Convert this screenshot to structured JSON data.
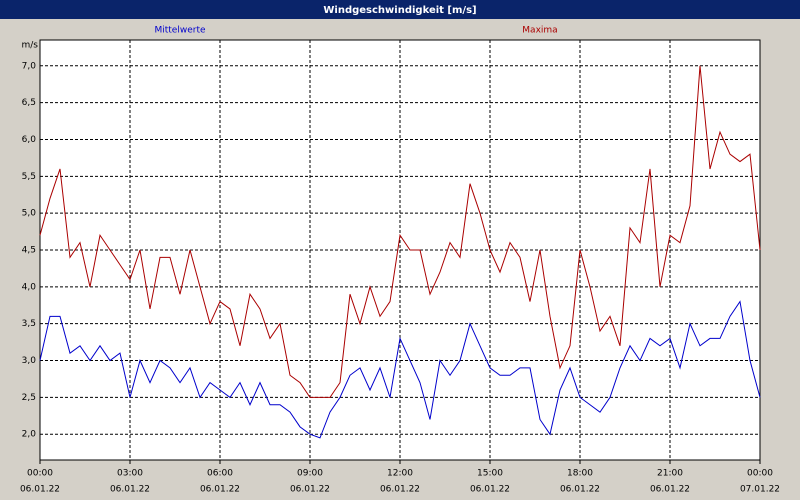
{
  "chart_data": {
    "type": "line",
    "title": "Windgeschwindigkeit [m/s]",
    "y_label": "m/s",
    "x": [
      0,
      20,
      40,
      60,
      80,
      100,
      120,
      140,
      160,
      180,
      200,
      220,
      240,
      260,
      280,
      300,
      320,
      340,
      360,
      380,
      400,
      420,
      440,
      460,
      480,
      500,
      520,
      540,
      560,
      580,
      600,
      620,
      640,
      660,
      680,
      700,
      720,
      740,
      760,
      780,
      800,
      820,
      840,
      860,
      880,
      900,
      920,
      940,
      960,
      980,
      1000,
      1020,
      1040,
      1060,
      1080,
      1100,
      1120,
      1140,
      1160,
      1180,
      1200,
      1220,
      1240,
      1260,
      1280,
      1300,
      1320,
      1340,
      1360,
      1380,
      1400,
      1420,
      1440
    ],
    "series": [
      {
        "name": "Mittelwerte",
        "color": "#0000cc",
        "values": [
          3.0,
          3.6,
          3.6,
          3.1,
          3.2,
          3.0,
          3.2,
          3.0,
          3.1,
          2.5,
          3.0,
          2.7,
          3.0,
          2.9,
          2.7,
          2.9,
          2.5,
          2.7,
          2.6,
          2.5,
          2.7,
          2.4,
          2.7,
          2.4,
          2.4,
          2.3,
          2.1,
          2.0,
          1.95,
          2.3,
          2.5,
          2.8,
          2.9,
          2.6,
          2.9,
          2.5,
          3.3,
          3.0,
          2.7,
          2.2,
          3.0,
          2.8,
          3.0,
          3.5,
          3.2,
          2.9,
          2.8,
          2.8,
          2.9,
          2.9,
          2.2,
          2.0,
          2.6,
          2.9,
          2.5,
          2.4,
          2.3,
          2.5,
          2.9,
          3.2,
          3.0,
          3.3,
          3.2,
          3.3,
          2.9,
          3.5,
          3.2,
          3.3,
          3.3,
          3.6,
          3.8,
          3.0,
          2.5
        ]
      },
      {
        "name": "Maxima",
        "color": "#aa0000",
        "values": [
          4.7,
          5.2,
          5.6,
          4.4,
          4.6,
          4.0,
          4.7,
          4.5,
          4.3,
          4.1,
          4.5,
          3.7,
          4.4,
          4.4,
          3.9,
          4.5,
          4.0,
          3.5,
          3.8,
          3.7,
          3.2,
          3.9,
          3.7,
          3.3,
          3.5,
          2.8,
          2.7,
          2.5,
          2.5,
          2.5,
          2.7,
          3.9,
          3.5,
          4.0,
          3.6,
          3.8,
          4.7,
          4.5,
          4.5,
          3.9,
          4.2,
          4.6,
          4.4,
          5.4,
          5.0,
          4.5,
          4.2,
          4.6,
          4.4,
          3.8,
          4.5,
          3.6,
          2.9,
          3.2,
          4.5,
          4.0,
          3.4,
          3.6,
          3.2,
          4.8,
          4.6,
          5.6,
          4.0,
          4.7,
          4.6,
          5.1,
          7.0,
          5.6,
          6.1,
          5.8,
          5.7,
          5.8,
          4.5
        ]
      }
    ],
    "xlim": [
      0,
      1440
    ],
    "xticks": [
      {
        "value": 0,
        "label": "00:00"
      },
      {
        "value": 180,
        "label": "03:00"
      },
      {
        "value": 360,
        "label": "06:00"
      },
      {
        "value": 540,
        "label": "09:00"
      },
      {
        "value": 720,
        "label": "12:00"
      },
      {
        "value": 900,
        "label": "15:00"
      },
      {
        "value": 1080,
        "label": "18:00"
      },
      {
        "value": 1260,
        "label": "21:00"
      },
      {
        "value": 1440,
        "label": "00:00"
      }
    ],
    "xtick_dates": [
      "06.01.22",
      "06.01.22",
      "06.01.22",
      "06.01.22",
      "06.01.22",
      "06.01.22",
      "06.01.22",
      "06.01.22",
      "07.01.22"
    ],
    "ylim": [
      1.65,
      7.35
    ],
    "yticks": [
      {
        "value": 2,
        "label": "2,0"
      },
      {
        "value": 2.5,
        "label": "2,5"
      },
      {
        "value": 3,
        "label": "3,0"
      },
      {
        "value": 3.5,
        "label": "3,5"
      },
      {
        "value": 4,
        "label": "4,0"
      },
      {
        "value": 4.5,
        "label": "4,5"
      },
      {
        "value": 5,
        "label": "5,0"
      },
      {
        "value": 5.5,
        "label": "5,5"
      },
      {
        "value": 6,
        "label": "6,0"
      },
      {
        "value": 6.5,
        "label": "6,5"
      },
      {
        "value": 7,
        "label": "7,0"
      }
    ],
    "grid": true
  }
}
